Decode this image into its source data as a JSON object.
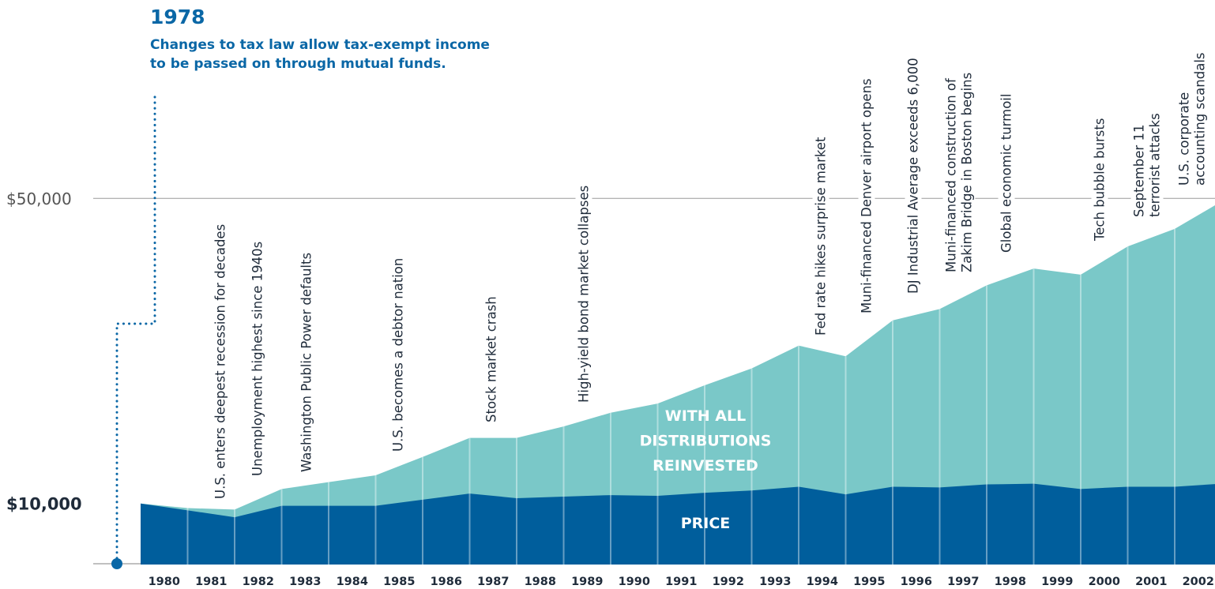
{
  "chart_data": {
    "type": "area",
    "categories": [
      null,
      "1980",
      "1981",
      "1982",
      "1983",
      "1984",
      "1985",
      "1986",
      "1987",
      "1988",
      "1989",
      "1990",
      "1991",
      "1992",
      "1993",
      "1994",
      "1995",
      "1996",
      "1997",
      "1998",
      "1999",
      "2000",
      "2001",
      "2002"
    ],
    "series": [
      {
        "name": "WITH ALL DISTRIBUTIONS REINVESTED",
        "color": "#7ac8c8",
        "values": [
          10000,
          9400,
          9200,
          11900,
          12800,
          13700,
          16100,
          18600,
          18600,
          20100,
          21900,
          23100,
          25500,
          27700,
          30700,
          29300,
          34000,
          35500,
          38600,
          40800,
          40000,
          43700,
          46000,
          49600
        ]
      },
      {
        "name": "PRICE",
        "color": "#005e9c",
        "values": [
          10000,
          9100,
          8200,
          9700,
          9700,
          9700,
          10500,
          11300,
          10700,
          10900,
          11100,
          11000,
          11400,
          11700,
          12200,
          11200,
          12200,
          12100,
          12500,
          12600,
          11900,
          12200,
          12200,
          12600
        ]
      }
    ],
    "ylim": [
      2000,
      76000
    ],
    "yticks": [
      {
        "value": 10000,
        "label": "$10,000"
      },
      {
        "value": 50000,
        "label": "$50,000"
      }
    ],
    "grid": true,
    "annotation": {
      "title": "1978",
      "lines": [
        "Changes to tax law allow tax-exempt income",
        "to be passed on through mutual funds."
      ]
    },
    "events": [
      {
        "lines": [
          "U.S. enters deepest recession for decades"
        ]
      },
      {
        "lines": [
          "Unemployment highest since 1940s"
        ]
      },
      {
        "lines": [
          "Washington Public Power defaults"
        ]
      },
      {
        "lines": [
          "U.S. becomes a debtor nation"
        ]
      },
      {
        "lines": [
          "Stock market crash"
        ]
      },
      {
        "lines": [
          "High-yield bond market collapses"
        ]
      },
      {
        "lines": [
          "Fed rate hikes surprise market"
        ]
      },
      {
        "lines": [
          "Muni-financed Denver airport opens"
        ]
      },
      {
        "lines": [
          "DJ Industrial Average exceeds 6,000"
        ]
      },
      {
        "lines": [
          "Muni-financed construction of",
          "Zakim Bridge in Boston begins"
        ]
      },
      {
        "lines": [
          "Global economic turmoil"
        ]
      },
      {
        "lines": [
          "Tech bubble bursts"
        ]
      },
      {
        "lines": [
          "September 11",
          "terrorist attacks"
        ]
      },
      {
        "lines": [
          "U.S. corporate",
          "accounting scandals"
        ]
      }
    ]
  }
}
